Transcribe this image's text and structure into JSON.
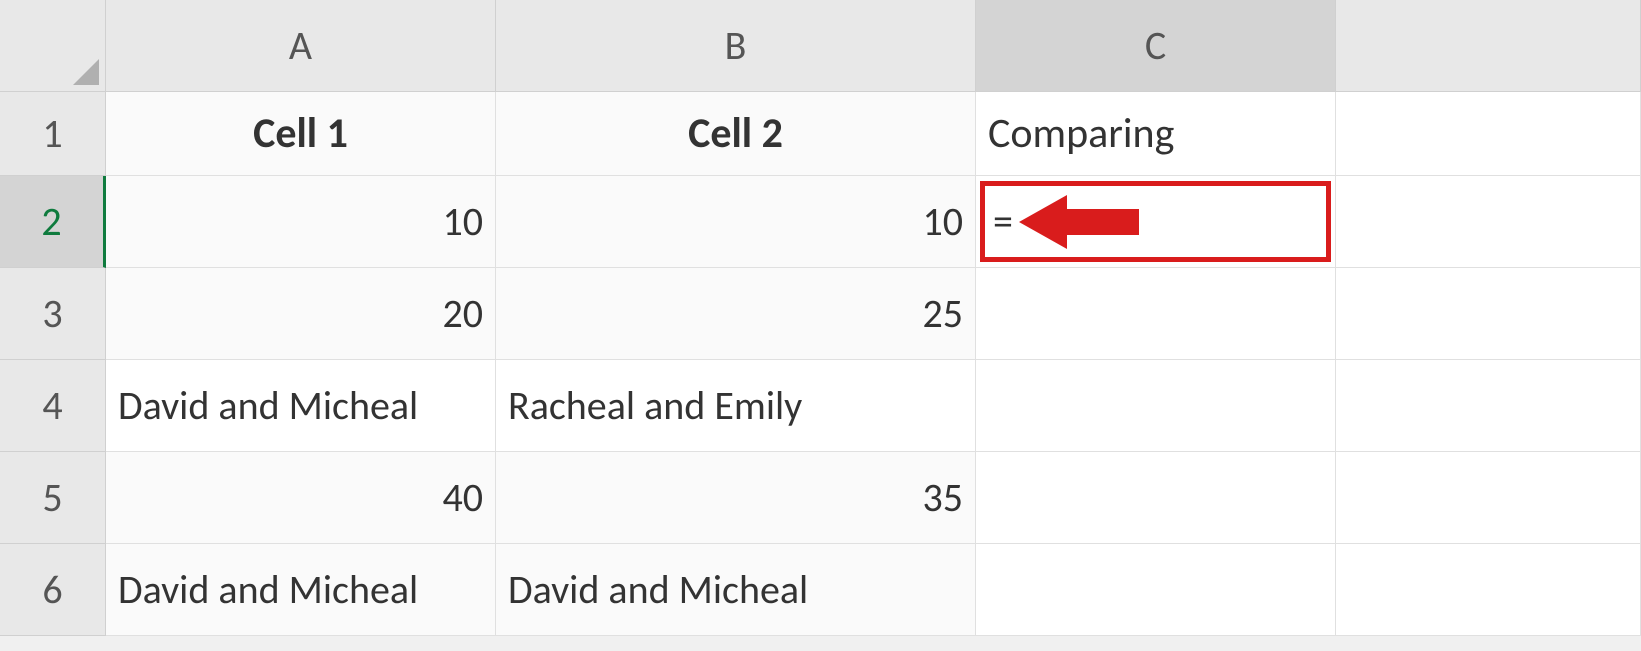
{
  "columns": {
    "A": "A",
    "B": "B",
    "C": "C"
  },
  "rows": {
    "r1": "1",
    "r2": "2",
    "r3": "3",
    "r4": "4",
    "r5": "5",
    "r6": "6"
  },
  "data": {
    "A1": "Cell 1",
    "B1": "Cell 2",
    "C1": "Comparing",
    "A2": "10",
    "B2": "10",
    "C2": "=",
    "A3": "20",
    "B3": "25",
    "A4": "David and Micheal",
    "B4": "Racheal and Emily",
    "A5": "40",
    "B5": "35",
    "A6": "David and Micheal",
    "B6": "David and Micheal"
  },
  "annotation": {
    "highlight_border_color": "#d91c1c",
    "arrow_color": "#d91c1c"
  },
  "styling": {
    "header_bg": "#e8e8e8",
    "cell_bg_light": "#fafafa",
    "cell_bg_white": "#ffffff",
    "border_color": "#e0e0e0",
    "selected_row_accent": "#0f7b3e",
    "font_family": "Calibri",
    "cell_fontsize": 40,
    "header_fontsize": 42
  }
}
